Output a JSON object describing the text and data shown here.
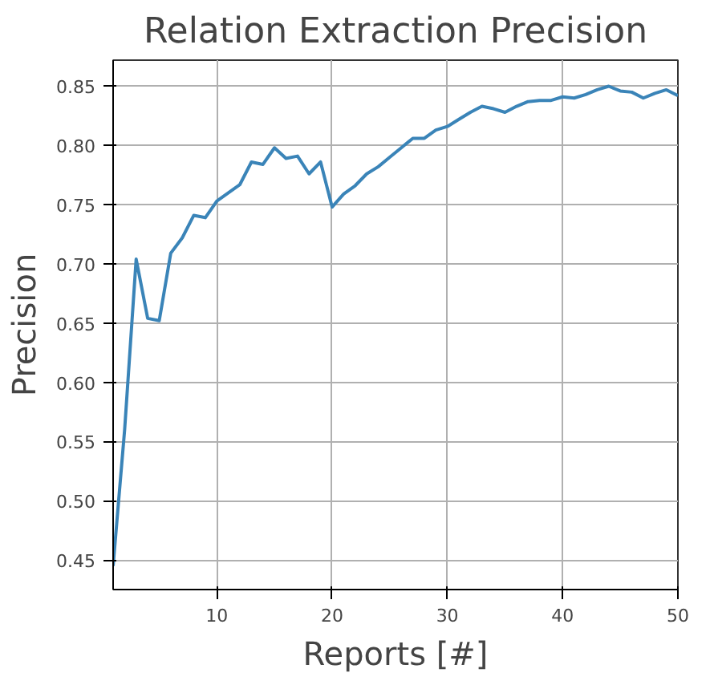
{
  "chart_data": {
    "type": "line",
    "title": "Relation Extraction Precision",
    "xlabel": "Reports [#]",
    "ylabel": "Precision",
    "x": [
      1,
      2,
      3,
      4,
      5,
      6,
      7,
      8,
      9,
      10,
      11,
      12,
      13,
      14,
      15,
      16,
      17,
      18,
      19,
      20,
      21,
      22,
      23,
      24,
      25,
      26,
      27,
      28,
      29,
      30,
      31,
      32,
      33,
      34,
      35,
      36,
      37,
      38,
      39,
      40,
      41,
      42,
      43,
      44,
      45,
      46,
      47,
      48,
      49,
      50
    ],
    "series": [
      {
        "color": "#3a84b8",
        "values": [
          0.445,
          0.56,
          0.704,
          0.654,
          0.652,
          0.709,
          0.722,
          0.741,
          0.739,
          0.753,
          0.76,
          0.767,
          0.786,
          0.784,
          0.798,
          0.789,
          0.791,
          0.776,
          0.786,
          0.748,
          0.759,
          0.766,
          0.776,
          0.782,
          0.79,
          0.798,
          0.806,
          0.806,
          0.813,
          0.816,
          0.822,
          0.828,
          0.833,
          0.831,
          0.828,
          0.833,
          0.837,
          0.838,
          0.838,
          0.841,
          0.84,
          0.843,
          0.847,
          0.85,
          0.846,
          0.845,
          0.84,
          0.844,
          0.847,
          0.842
        ]
      }
    ],
    "xlim": [
      1,
      50
    ],
    "ylim": [
      0.425,
      0.872
    ],
    "xticks": [
      10,
      20,
      30,
      40,
      50
    ],
    "yticks": [
      {
        "value": 0.45,
        "label": "0.45"
      },
      {
        "value": 0.5,
        "label": "0.50"
      },
      {
        "value": 0.55,
        "label": "0.55"
      },
      {
        "value": 0.6,
        "label": "0.60"
      },
      {
        "value": 0.65,
        "label": "0.65"
      },
      {
        "value": 0.7,
        "label": "0.70"
      },
      {
        "value": 0.75,
        "label": "0.75"
      },
      {
        "value": 0.8,
        "label": "0.80"
      },
      {
        "value": 0.85,
        "label": "0.85"
      }
    ],
    "grid": true
  }
}
